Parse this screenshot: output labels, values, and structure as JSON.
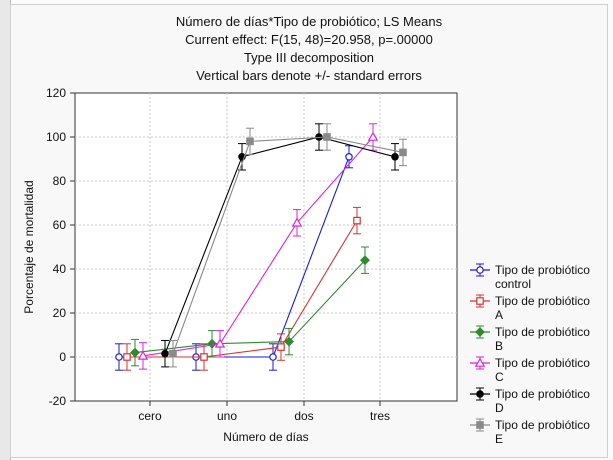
{
  "chart_data": {
    "type": "line",
    "title_lines": [
      "Número de días*Tipo de probiótico; LS Means",
      "Current effect: F(15, 48)=20.958, p=.00000",
      "Type III decomposition",
      "Vertical bars denote +/- standard errors"
    ],
    "xlabel": "Número de días",
    "ylabel": "Porcentaje de mortalidad",
    "categories": [
      "cero",
      "uno",
      "dos",
      "tres"
    ],
    "ylim": [
      -20,
      120
    ],
    "yticks": [
      -20,
      0,
      20,
      40,
      60,
      80,
      100,
      120
    ],
    "grid": true,
    "legend_position": "right",
    "series": [
      {
        "name_lines": [
          "Tipo de probiótico",
          "control"
        ],
        "color": "#1a1adc",
        "marker": "circle-open",
        "values": [
          0,
          0,
          0,
          91
        ],
        "errors": [
          6,
          6,
          6,
          5
        ]
      },
      {
        "name_lines": [
          "Tipo de probiótico",
          "A"
        ],
        "color": "#e03030",
        "marker": "square-open",
        "values": [
          0,
          0,
          4.5,
          62
        ],
        "errors": [
          6,
          6,
          6,
          6
        ]
      },
      {
        "name_lines": [
          "Tipo de probiótico",
          "B"
        ],
        "color": "#2e8b2e",
        "marker": "diamond",
        "values": [
          2,
          6,
          7,
          44
        ],
        "errors": [
          6,
          6,
          6,
          6
        ]
      },
      {
        "name_lines": [
          "Tipo de probiótico",
          "C"
        ],
        "color": "#e020e0",
        "marker": "triangle-open",
        "values": [
          0.5,
          6,
          61,
          100
        ],
        "errors": [
          6,
          6,
          6,
          6
        ]
      },
      {
        "name_lines": [
          "Tipo de probiótico",
          "D"
        ],
        "color": "#000000",
        "marker": "circle",
        "values": [
          1.5,
          91,
          100,
          91
        ],
        "errors": [
          6,
          6,
          6,
          6
        ]
      },
      {
        "name_lines": [
          "Tipo de probiótico",
          "E"
        ],
        "color": "#8a8a8a",
        "marker": "square",
        "values": [
          1.5,
          98,
          100,
          93
        ],
        "errors": [
          6,
          6,
          6,
          6
        ]
      }
    ]
  }
}
